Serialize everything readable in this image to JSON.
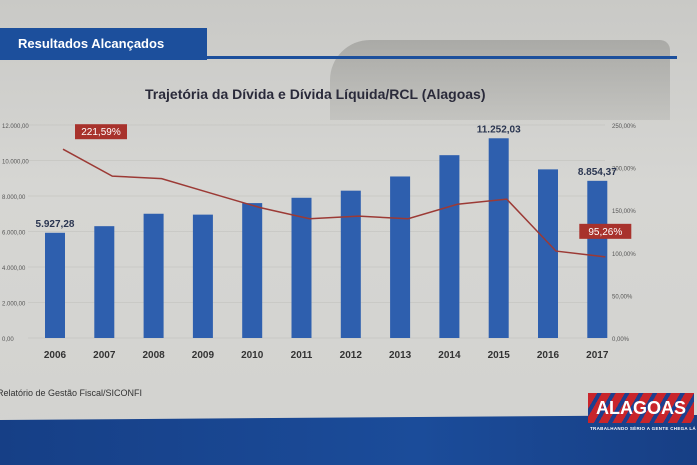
{
  "header": {
    "title": "Resultados Alcançados"
  },
  "source": "Relatório de Gestão Fiscal/SICONFI",
  "logo": {
    "name": "ALAGOAS",
    "tagline": "TRABALHANDO SÉRIO A GENTE CHEGA LÁ"
  },
  "colors": {
    "bar": "#2e5fae",
    "line": "#9c3a35",
    "label_bg": "#a8322c",
    "header": "#1c4f9c"
  },
  "chart_data": {
    "type": "bar+line",
    "title": "Trajetória da Dívida e Dívida Líquida/RCL (Alagoas)",
    "categories": [
      "2006",
      "2007",
      "2008",
      "2009",
      "2010",
      "2011",
      "2012",
      "2013",
      "2014",
      "2015",
      "2016",
      "2017"
    ],
    "series": [
      {
        "name": "Dívida",
        "axis": "left",
        "type": "bar",
        "values": [
          5927.28,
          6300,
          7000,
          6950,
          7600,
          7900,
          8300,
          9100,
          10300,
          11252.03,
          9500,
          8854.37
        ]
      },
      {
        "name": "Dívida Líquida/RCL",
        "axis": "right",
        "type": "line",
        "values": [
          221.59,
          190,
          187,
          170,
          153,
          140,
          143,
          140,
          157,
          163,
          102,
          95.26
        ]
      }
    ],
    "data_labels": {
      "bar": [
        {
          "index": 0,
          "text": "5.927,28"
        },
        {
          "index": 9,
          "text": "11.252,03"
        },
        {
          "index": 11,
          "text": "8.854,37"
        }
      ],
      "line": [
        {
          "index": 0,
          "text": "221,59%"
        },
        {
          "index": 11,
          "text": "95,26%"
        }
      ]
    },
    "left_ticks": [
      "0,00",
      "2.000,00",
      "4.000,00",
      "6.000,00",
      "8.000,00",
      "10.000,00",
      "12.000,00"
    ],
    "right_ticks": [
      "0,00%",
      "50,00%",
      "100,00%",
      "150,00%",
      "200,00%",
      "250,00%"
    ],
    "ylim_left": [
      0,
      12000
    ],
    "ylim_right": [
      0,
      250
    ],
    "grid": true
  }
}
